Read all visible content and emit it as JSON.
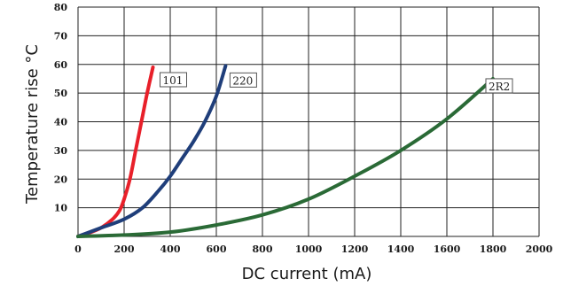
{
  "chart_data": {
    "type": "line",
    "xlabel": "DC current (mA)",
    "ylabel": "Temperature rise °C",
    "xlim": [
      0,
      2000
    ],
    "ylim": [
      0,
      80
    ],
    "x_ticks": [
      "0",
      "200",
      "400",
      "600",
      "800",
      "1000",
      "1200",
      "1400",
      "1600",
      "1800",
      "2000"
    ],
    "y_ticks": [
      "10",
      "20",
      "30",
      "40",
      "50",
      "60",
      "70",
      "80"
    ],
    "grid": true,
    "series": [
      {
        "name": "101",
        "color": "#e8202a",
        "points": [
          [
            0,
            0
          ],
          [
            50,
            1.3
          ],
          [
            100,
            3
          ],
          [
            150,
            6
          ],
          [
            180,
            9
          ],
          [
            200,
            13
          ],
          [
            225,
            20
          ],
          [
            250,
            30
          ],
          [
            275,
            40
          ],
          [
            300,
            50
          ],
          [
            325,
            59
          ]
        ]
      },
      {
        "name": "220",
        "color": "#1f3e7a",
        "points": [
          [
            0,
            0
          ],
          [
            100,
            3
          ],
          [
            200,
            6
          ],
          [
            280,
            10
          ],
          [
            350,
            16
          ],
          [
            400,
            21
          ],
          [
            450,
            27
          ],
          [
            500,
            33
          ],
          [
            550,
            40
          ],
          [
            600,
            49
          ],
          [
            640,
            59.5
          ]
        ]
      },
      {
        "name": "2R2",
        "color": "#2a6a36",
        "points": [
          [
            0,
            0
          ],
          [
            200,
            0.5
          ],
          [
            400,
            1.5
          ],
          [
            600,
            4
          ],
          [
            800,
            7.5
          ],
          [
            1000,
            13
          ],
          [
            1200,
            21
          ],
          [
            1400,
            30
          ],
          [
            1600,
            41
          ],
          [
            1800,
            55
          ]
        ]
      }
    ]
  }
}
